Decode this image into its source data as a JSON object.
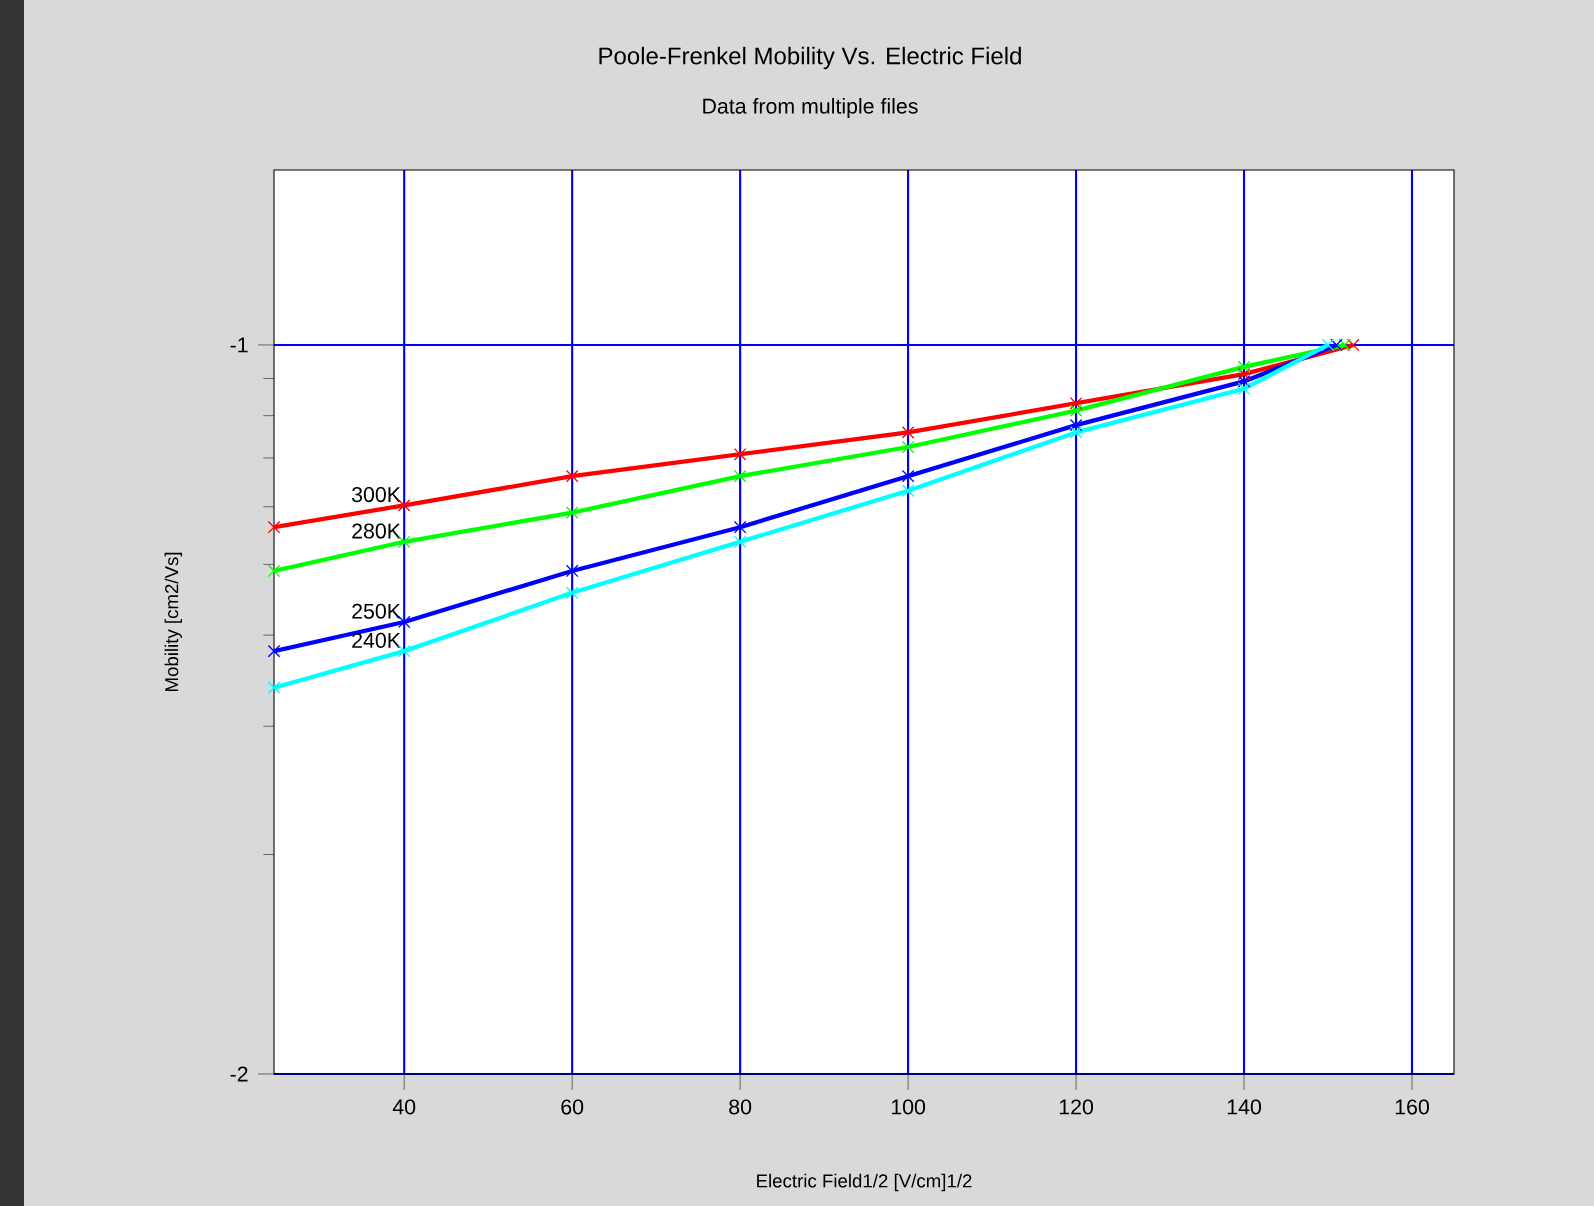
{
  "chart_data": {
    "type": "line",
    "title": "Poole-Frenkel Mobility Vs. Electric Field",
    "subtitle": "Data from multiple files",
    "xlabel": "Electric Field1/2 [V/cm]1/2",
    "ylabel": "Mobility [cm2/Vs]",
    "xlim": [
      24.5,
      165
    ],
    "xticks": [
      40,
      60,
      80,
      100,
      120,
      140,
      160
    ],
    "ylim": [
      -2,
      -0.76
    ],
    "yticks": [
      -1,
      {
        "value": -1.046,
        "label": null
      },
      {
        "value": -1.097,
        "label": null
      },
      {
        "value": -1.155,
        "label": null
      },
      {
        "value": -1.222,
        "label": null
      },
      {
        "value": -1.301,
        "label": null
      },
      {
        "value": -1.398,
        "label": null
      },
      {
        "value": -1.523,
        "label": null
      },
      {
        "value": -1.699,
        "label": null
      },
      -2
    ],
    "grid": true,
    "marker": "cross",
    "line_style": "solid",
    "series": [
      {
        "name": "300K",
        "color": "#ff0000",
        "x": [
          24.5,
          40,
          60,
          80,
          100,
          120,
          140,
          153
        ],
        "values": [
          -1.25,
          -1.22,
          -1.18,
          -1.15,
          -1.12,
          -1.08,
          -1.04,
          -1.0
        ]
      },
      {
        "name": "280K",
        "color": "#00ff00",
        "x": [
          24.5,
          40,
          60,
          80,
          100,
          120,
          140,
          152
        ],
        "values": [
          -1.31,
          -1.27,
          -1.23,
          -1.18,
          -1.14,
          -1.09,
          -1.03,
          -1.0
        ]
      },
      {
        "name": "250K",
        "color": "#0000ff",
        "x": [
          24.5,
          40,
          60,
          80,
          100,
          120,
          140,
          151
        ],
        "values": [
          -1.42,
          -1.38,
          -1.31,
          -1.25,
          -1.18,
          -1.11,
          -1.05,
          -1.0
        ]
      },
      {
        "name": "240K",
        "color": "#00ffff",
        "x": [
          24.5,
          40,
          60,
          80,
          100,
          120,
          140,
          150
        ],
        "values": [
          -1.47,
          -1.42,
          -1.34,
          -1.27,
          -1.2,
          -1.12,
          -1.06,
          -1.0
        ]
      }
    ]
  }
}
